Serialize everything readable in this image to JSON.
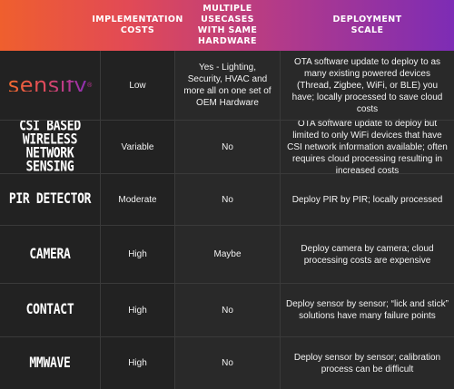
{
  "header": {
    "col1": "Implementation\nCosts",
    "col2": "Multiple Usecases\nwith same Hardware",
    "col3": "Deployment\nScale"
  },
  "rows": [
    {
      "label": "sensify",
      "costs": "Low",
      "usecases": "Yes - Lighting, Security, HVAC and more all on one set of OEM Hardware",
      "scale": "OTA software update to deploy to as many existing powered devices (Thread, Zigbee, WiFi, or BLE) you have; locally processed to save cloud costs"
    },
    {
      "label": "CSI Based Wireless Network Sensing",
      "costs": "Variable",
      "usecases": "No",
      "scale": "OTA software update to deploy but limited to only WiFi devices that have CSI network information available; often requires cloud processing resulting in increased costs"
    },
    {
      "label": "PIR Detector",
      "costs": "Moderate",
      "usecases": "No",
      "scale": "Deploy PIR by PIR; locally processed"
    },
    {
      "label": "Camera",
      "costs": "High",
      "usecases": "Maybe",
      "scale": "Deploy camera by camera; cloud processing costs are expensive"
    },
    {
      "label": "Contact",
      "costs": "High",
      "usecases": "No",
      "scale": "Deploy sensor by sensor; “lick and stick” solutions have many failure points"
    },
    {
      "label": "mmWave",
      "costs": "High",
      "usecases": "No",
      "scale": "Deploy sensor by sensor; calibration process can be difficult"
    }
  ]
}
